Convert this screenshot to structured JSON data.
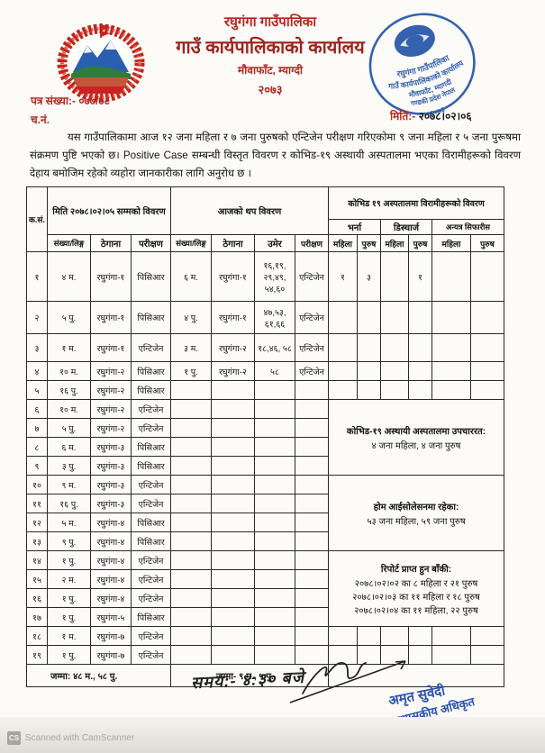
{
  "colors": {
    "accent_red": "#b5271f",
    "stamp_blue": "#2456a8",
    "text_black": "#141414"
  },
  "letterhead": {
    "municipality": "रघुगंगा गाउँपालिका",
    "office": "गाउँ कार्यपालिकाको कार्यालय",
    "address": "मौवाफाँट, म्याग्दी",
    "year": "२०७३"
  },
  "meta": {
    "letter_no_label": "पत्र संख्या:-",
    "letter_no": "०७७/७८",
    "ch_no_label": "च.नं.",
    "date_label": "मिति:-",
    "date": "२०७८।०२।०६"
  },
  "body_text": "यस गाउँपालिकामा आज १२ जना महिला र ७ जना पुरुषको एन्टिजेन परीक्षण गरिएकोमा ९ जना महिला र ५ जना पुरूषमा संक्रमण पुष्टि भएको छ। Positive Case सम्बन्धी विस्तृत विवरण  र कोभिड-१९ अस्थायी अस्पतालमा भएका विरामीहरूको विवरण देहाय बमोजिम रहेको व्यहोरा जानकारीका लागि अनुरोध छ ।",
  "table": {
    "section_headers": {
      "sn": "क.सं.",
      "previous": "मिति २०७८।०२।०५ सम्मको विवरण",
      "today": "आजको थप विवरण",
      "hospital": "कोभिड १९ अस्पतालमा विरामीहरूको विवरण",
      "admit": "भर्ना",
      "discharge": "डिस्चार्ज",
      "referred": "अन्यत्र सिफारीस"
    },
    "column_headers": {
      "count1": "संख्या/लिङ्ग",
      "address1": "ठेगाना",
      "test1": "परीक्षण",
      "count2": "संख्या/लिङ्ग",
      "address2": "ठेगाना",
      "age": "उमेर",
      "test2": "परीक्षण",
      "female": "महिला",
      "male": "पुरुष"
    },
    "rows": [
      [
        "१",
        "४ म.",
        "रघुगंगा-१",
        "पिसिआर",
        "६ म.",
        "रघुगंगा-१",
        "१६,१९, २९,४९, ५४,६०",
        "एन्टिजेन"
      ],
      [
        "२",
        "५ पु.",
        "रघुगंगा-१",
        "पिसिआर",
        "४ पु.",
        "रघुगंगा-१",
        "४७,५३, ६१,६६",
        "एन्टिजेन"
      ],
      [
        "३",
        "१ म.",
        "रघुगंगा-१",
        "एन्टिजेन",
        "३ म.",
        "रघुगंगा-२",
        "१८,४६, ५८",
        "एन्टिजेन"
      ],
      [
        "४",
        "१० म.",
        "रघुगंगा-२",
        "पिसिआर",
        "१ पु.",
        "रघुगंगा-२",
        "५८",
        "एन्टिजेन"
      ],
      [
        "५",
        "१६ पु.",
        "रघुगंगा-२",
        "पिसिआर",
        "",
        "",
        "",
        ""
      ],
      [
        "६",
        "१० म.",
        "रघुगंगा-२",
        "एन्टिजेन",
        "",
        "",
        "",
        ""
      ],
      [
        "७",
        "५ पु.",
        "रघुगंगा-२",
        "एन्टिजेन",
        "",
        "",
        "",
        ""
      ],
      [
        "८",
        "६ म.",
        "रघुगंगा-३",
        "पिसिआर",
        "",
        "",
        "",
        ""
      ],
      [
        "९",
        "३ पु.",
        "रघुगंगा-३",
        "पिसिआर",
        "",
        "",
        "",
        ""
      ],
      [
        "१०",
        "९ म.",
        "रघुगंगा-३",
        "एन्टिजेन",
        "",
        "",
        "",
        ""
      ],
      [
        "११",
        "१६ पु.",
        "रघुगंगा-३",
        "एन्टिजेन",
        "",
        "",
        "",
        ""
      ],
      [
        "१२",
        "५ म.",
        "रघुगंगा-४",
        "पिसिआर",
        "",
        "",
        "",
        ""
      ],
      [
        "१३",
        "९ पु.",
        "रघुगंगा-४",
        "पिसिआर",
        "",
        "",
        "",
        ""
      ],
      [
        "१४",
        "१ पु.",
        "रघुगंगा-४",
        "एन्टिजेन",
        "",
        "",
        "",
        ""
      ],
      [
        "१५",
        "२ म.",
        "रघुगंगा-४",
        "एन्टिजेन",
        "",
        "",
        "",
        ""
      ],
      [
        "१६",
        "१ पु.",
        "रघुगंगा-४",
        "एन्टिजेन",
        "",
        "",
        "",
        ""
      ],
      [
        "१७",
        "१ पु.",
        "रघुगंगा-५",
        "पिसिआर",
        "",
        "",
        "",
        ""
      ],
      [
        "१८",
        "१ म.",
        "रघुगंगा-७",
        "एन्टिजेन",
        "",
        "",
        "",
        ""
      ],
      [
        "१९",
        "१ पु.",
        "रघुगंगा-७",
        "एन्टिजेन",
        "",
        "",
        "",
        ""
      ]
    ],
    "hospital_first_row": [
      "१",
      "३",
      "",
      "१",
      "",
      ""
    ],
    "notes": [
      {
        "title": "कोभिड-१९ अस्थायी अस्पतालमा उपचाररत:",
        "lines": [
          "४ जना महिला, ४ जना पुरुष"
        ]
      },
      {
        "title": "होम आईसोलेसनमा रहेका:",
        "lines": [
          "५३ जना महिला, ५९ जना पुरुष"
        ]
      },
      {
        "title": "रिपोर्ट प्राप्त हुन बाँकी:",
        "lines": [
          "२०७८।०२।०२ का ८ महिला र २१ पुरुष",
          "२०७८।०२।०३ का ११ महिला र १८ पुरुष",
          "२०७८।०२।०४ का ११ महिला, २२ पुरुष"
        ]
      }
    ],
    "totals": {
      "previous": "जम्मा: ४८ म., ५८ पु.",
      "today": "जम्मा- ९ म., ५ पु."
    }
  },
  "round_stamp": {
    "line1": "रघुगंगा गाउँपालिका",
    "line2": "गाउँ कार्यपालिकाको कार्यालय",
    "line3": "मौवाफाँट, म्यागदी",
    "line4": "गण्डकी प्रदेश नेपाल",
    "year": "२०७३"
  },
  "signature": {
    "time": "समय:- ४:३० बजे",
    "name": "अमृत सुवेदी",
    "title": "प्रमुख प्रशासकीय अधिकृत"
  },
  "footer": {
    "scanner_logo": "CS",
    "scanner_note": "Scanned with CamScanner"
  }
}
